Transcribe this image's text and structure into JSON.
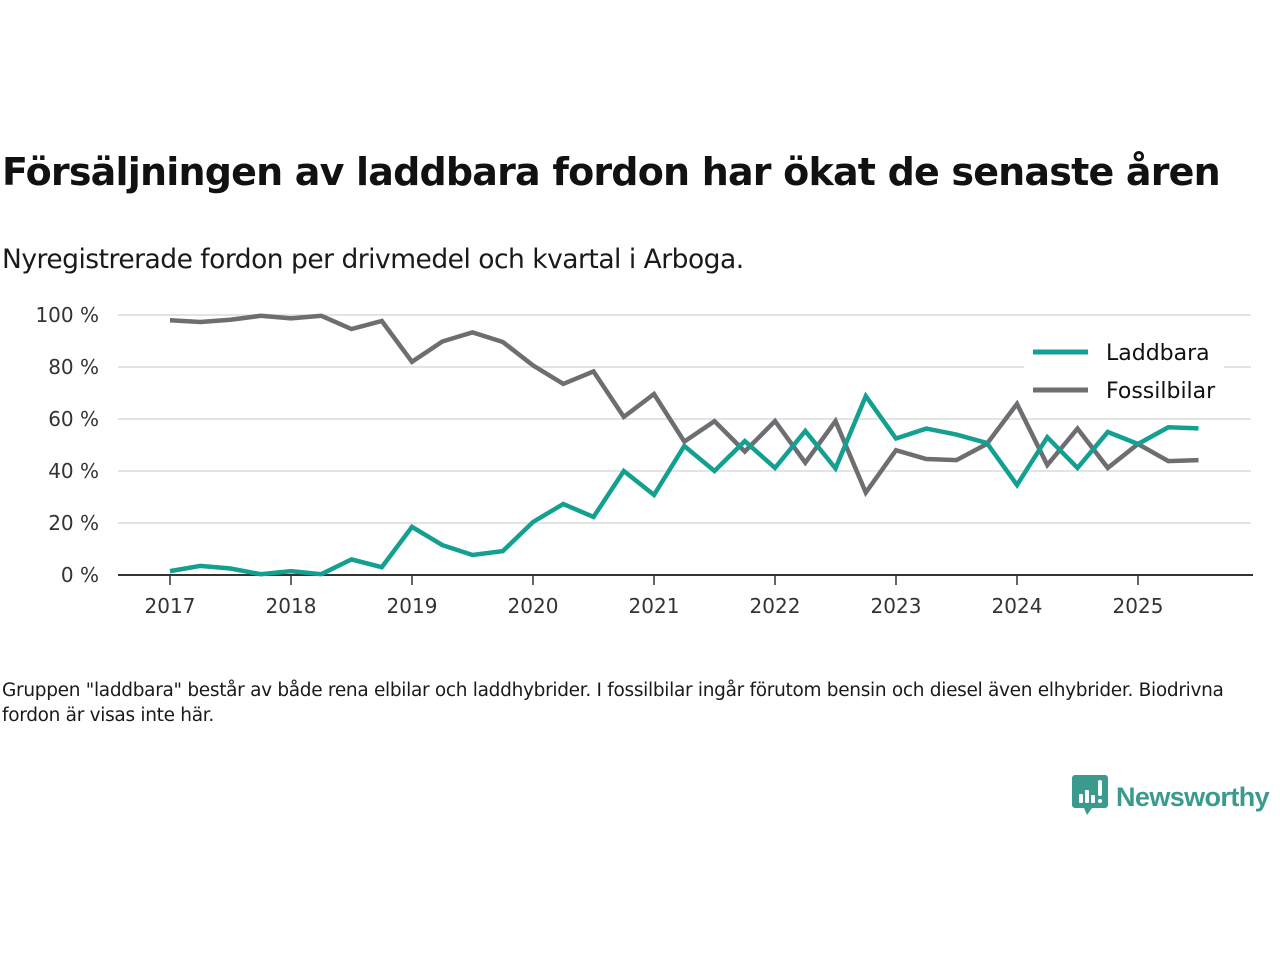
{
  "header": {
    "title": "Försäljningen av laddbara fordon har ökat de senaste åren",
    "subtitle": "Nyregistrerade fordon per drivmedel och kvartal i Arboga."
  },
  "footnote": "Gruppen \"laddbara\" består av både rena elbilar och laddhybrider. I fossilbilar ingår förutom bensin och diesel även elhybrider. Biodrivna fordon är visas inte här.",
  "brand": {
    "name": "Newsworthy",
    "icon": "newsworthy-logo-icon",
    "color": "#3b9a8e"
  },
  "chart_data": {
    "type": "line",
    "title": "Försäljningen av laddbara fordon har ökat de senaste åren",
    "subtitle": "Nyregistrerade fordon per drivmedel och kvartal i Arboga.",
    "xlabel": "",
    "ylabel": "",
    "x_unit": "quarter",
    "x_start": "2017 Q1",
    "x_ticks": [
      "2017",
      "2018",
      "2019",
      "2020",
      "2021",
      "2022",
      "2023",
      "2024",
      "2025"
    ],
    "xlim": [
      2016.6,
      2025.9
    ],
    "y_ticks": [
      "0 %",
      "20 %",
      "40 %",
      "60 %",
      "80 %",
      "100 %"
    ],
    "y_tick_values": [
      0,
      20,
      40,
      60,
      80,
      100
    ],
    "ylim": [
      0,
      100
    ],
    "grid": true,
    "legend_position": "top-right",
    "x": [
      "2017 Q1",
      "2017 Q2",
      "2017 Q3",
      "2017 Q4",
      "2018 Q1",
      "2018 Q2",
      "2018 Q3",
      "2018 Q4",
      "2019 Q1",
      "2019 Q2",
      "2019 Q3",
      "2019 Q4",
      "2020 Q1",
      "2020 Q2",
      "2020 Q3",
      "2020 Q4",
      "2021 Q1",
      "2021 Q2",
      "2021 Q3",
      "2021 Q4",
      "2022 Q1",
      "2022 Q2",
      "2022 Q3",
      "2022 Q4",
      "2023 Q1",
      "2023 Q2",
      "2023 Q3",
      "2023 Q4",
      "2024 Q1",
      "2024 Q2",
      "2024 Q3",
      "2024 Q4",
      "2025 Q1",
      "2025 Q2",
      "2025 Q3"
    ],
    "series": [
      {
        "name": "Laddbara",
        "color": "#14a091",
        "values": [
          1.5,
          3.5,
          2.5,
          0.3,
          1.5,
          0.3,
          6,
          3,
          18.5,
          11.5,
          7.7,
          9.2,
          20.4,
          27.3,
          22.3,
          40,
          30.8,
          49.6,
          40,
          51.5,
          41.2,
          55.4,
          41,
          68.8,
          52.5,
          56.3,
          54,
          50.8,
          34.6,
          53,
          41.2,
          55,
          50.4,
          56.8,
          56.4
        ]
      },
      {
        "name": "Fossilbilar",
        "color": "#6e6e72",
        "values": [
          98,
          97.3,
          98.2,
          99.7,
          98.7,
          99.7,
          94.6,
          97.7,
          82,
          89.8,
          93.3,
          89.6,
          80.6,
          73.5,
          78.3,
          60.8,
          69.6,
          51.3,
          59.2,
          47.5,
          59.2,
          43.2,
          59.2,
          31.7,
          48,
          44.6,
          44.2,
          50.4,
          65.8,
          42.3,
          56.3,
          41.2,
          50.4,
          43.8,
          44.2
        ]
      }
    ]
  }
}
